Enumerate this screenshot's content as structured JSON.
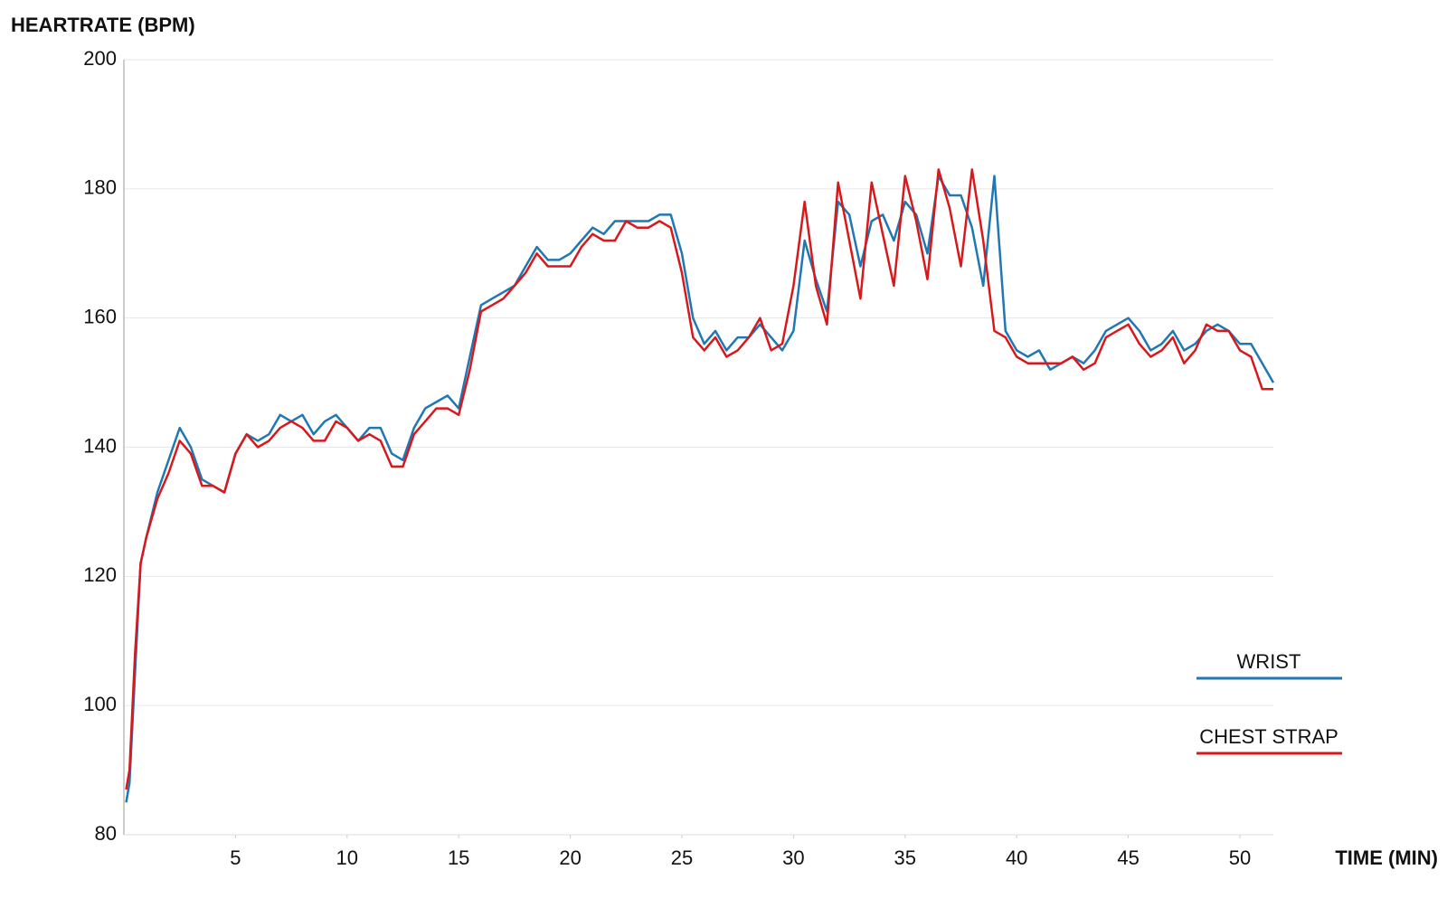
{
  "chart_data": {
    "type": "line",
    "y_label": "HEARTRATE (BPM)",
    "x_label": "TIME (MIN)",
    "x": [
      0.1,
      0.25,
      0.5,
      0.75,
      1,
      1.5,
      2,
      2.5,
      3,
      3.5,
      4,
      4.5,
      5,
      5.5,
      6,
      6.5,
      7,
      7.5,
      8,
      8.5,
      9,
      9.5,
      10,
      10.5,
      11,
      11.5,
      12,
      12.5,
      13,
      13.5,
      14,
      14.5,
      15,
      15.5,
      16,
      16.5,
      17,
      17.5,
      18,
      18.5,
      19,
      19.5,
      20,
      20.5,
      21,
      21.5,
      22,
      22.5,
      23,
      23.5,
      24,
      24.5,
      25,
      25.5,
      26,
      26.5,
      27,
      27.5,
      28,
      28.5,
      29,
      29.5,
      30,
      30.5,
      31,
      31.5,
      32,
      32.5,
      33,
      33.5,
      34,
      34.5,
      35,
      35.5,
      36,
      36.5,
      37,
      37.5,
      38,
      38.5,
      39,
      39.5,
      40,
      40.5,
      41,
      41.5,
      42,
      42.5,
      43,
      43.5,
      44,
      44.5,
      45,
      45.5,
      46,
      46.5,
      47,
      47.5,
      48,
      48.5,
      49,
      49.5,
      50,
      50.5,
      51,
      51.5
    ],
    "series": [
      {
        "name": "WRIST",
        "color": "#1f77b4",
        "values": [
          85,
          88,
          105,
          122,
          126,
          133,
          138,
          143,
          140,
          135,
          134,
          133,
          139,
          142,
          141,
          142,
          145,
          144,
          145,
          142,
          144,
          145,
          143,
          141,
          143,
          143,
          139,
          138,
          143,
          146,
          147,
          148,
          146,
          154,
          162,
          163,
          164,
          165,
          168,
          171,
          169,
          169,
          170,
          172,
          174,
          173,
          175,
          175,
          175,
          175,
          176,
          176,
          170,
          160,
          156,
          158,
          155,
          157,
          157,
          159,
          157,
          155,
          158,
          172,
          166,
          161,
          178,
          176,
          168,
          175,
          176,
          172,
          178,
          176,
          170,
          182,
          179,
          179,
          174,
          165,
          182,
          158,
          155,
          154,
          155,
          152,
          153,
          154,
          153,
          155,
          158,
          159,
          160,
          158,
          155,
          156,
          158,
          155,
          156,
          158,
          159,
          158,
          156,
          156,
          153,
          150
        ]
      },
      {
        "name": "CHEST STRAP",
        "color": "#d7191c",
        "values": [
          87,
          90,
          108,
          122,
          126,
          132,
          136,
          141,
          139,
          134,
          134,
          133,
          139,
          142,
          140,
          141,
          143,
          144,
          143,
          141,
          141,
          144,
          143,
          141,
          142,
          141,
          137,
          137,
          142,
          144,
          146,
          146,
          145,
          152,
          161,
          162,
          163,
          165,
          167,
          170,
          168,
          168,
          168,
          171,
          173,
          172,
          172,
          175,
          174,
          174,
          175,
          174,
          167,
          157,
          155,
          157,
          154,
          155,
          157,
          160,
          155,
          156,
          165,
          178,
          165,
          159,
          181,
          172,
          163,
          181,
          173,
          165,
          182,
          175,
          166,
          183,
          177,
          168,
          183,
          172,
          158,
          157,
          154,
          153,
          153,
          153,
          153,
          154,
          152,
          153,
          157,
          158,
          159,
          156,
          154,
          155,
          157,
          153,
          155,
          159,
          158,
          158,
          155,
          154,
          149,
          149
        ]
      }
    ],
    "xlim": [
      0,
      51.5
    ],
    "ylim": [
      80,
      200
    ],
    "xticks": [
      5,
      10,
      15,
      20,
      25,
      30,
      35,
      40,
      45,
      50
    ],
    "yticks": [
      80,
      100,
      120,
      140,
      160,
      180,
      200
    ],
    "grid": true
  }
}
